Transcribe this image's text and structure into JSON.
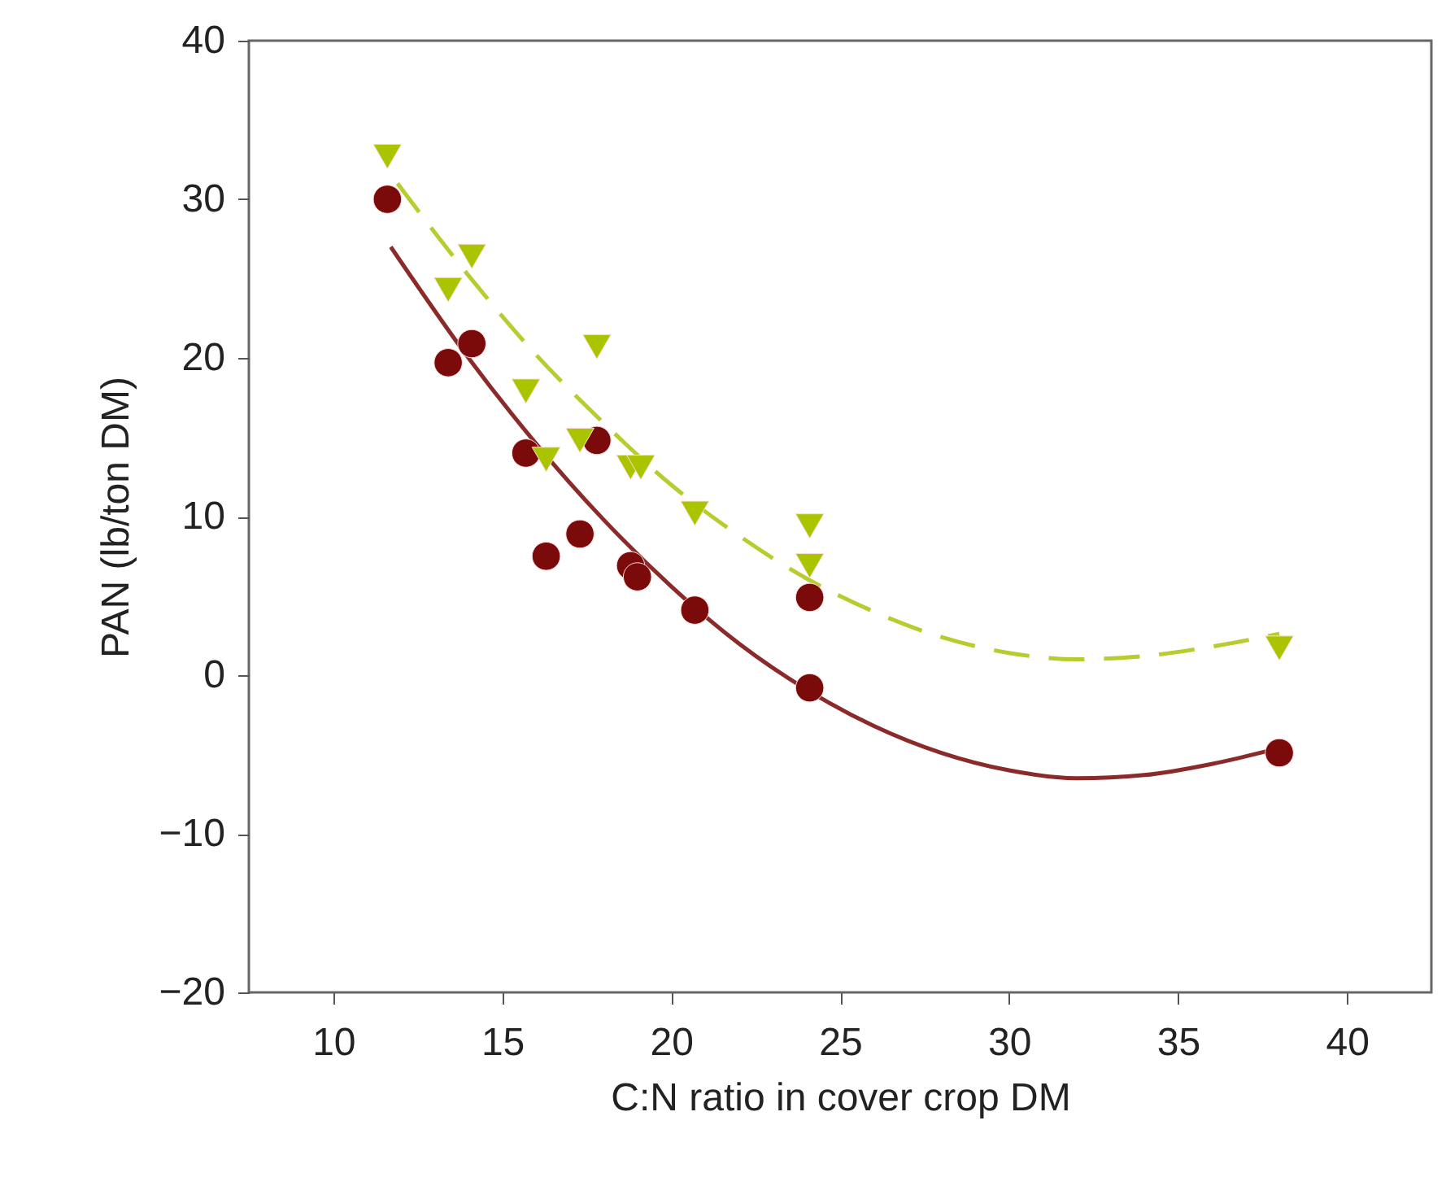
{
  "chart_data": {
    "type": "scatter",
    "xlabel": "C:N ratio in cover crop DM",
    "ylabel": "PAN (lb/ton DM)",
    "xlim": [
      7.5,
      42.5
    ],
    "xticks": [
      10,
      15,
      20,
      25,
      30,
      35,
      40
    ],
    "ylim": [
      -20,
      40
    ],
    "yticks": [
      -20,
      -10,
      0,
      10,
      20,
      30,
      40
    ],
    "grid": false,
    "series": [
      {
        "color": "#7b0a0a",
        "marker": "circle",
        "x": [
          11.6,
          13.4,
          14.1,
          15.7,
          16.3,
          17.3,
          17.8,
          18.8,
          19.0,
          20.7,
          24.1,
          24.1,
          38.0
        ],
        "values": [
          30.0,
          19.7,
          20.9,
          14.0,
          7.5,
          8.9,
          14.8,
          6.9,
          6.2,
          4.1,
          4.9,
          -0.8,
          -4.9
        ]
      },
      {
        "color": "#aac400",
        "marker": "triangle",
        "x": [
          11.6,
          13.4,
          14.1,
          15.7,
          16.3,
          17.3,
          17.8,
          18.8,
          19.1,
          20.7,
          24.1,
          24.1,
          38.0
        ],
        "values": [
          32.7,
          24.3,
          26.4,
          17.9,
          13.6,
          14.8,
          20.7,
          13.1,
          13.1,
          10.2,
          9.4,
          6.9,
          1.7
        ]
      },
      {
        "type": "line",
        "color": "#8b2a2a",
        "line_style": "solid",
        "marker": "none",
        "x": [
          11.7,
          14,
          16,
          18,
          20,
          22,
          24,
          26,
          28,
          30,
          32,
          34,
          36,
          38
        ],
        "values": [
          27.0,
          20.0,
          14.6,
          9.8,
          5.6,
          2.0,
          -0.9,
          -3.2,
          -4.9,
          -6.0,
          -6.5,
          -6.3,
          -5.6,
          -4.6
        ]
      },
      {
        "type": "line",
        "color": "#b8cc30",
        "line_style": "dashed",
        "marker": "none",
        "x": [
          11.9,
          14,
          16,
          18,
          20,
          22,
          24,
          26,
          28,
          30,
          32,
          34,
          36,
          38
        ],
        "values": [
          31.0,
          25.2,
          20.2,
          15.9,
          12.0,
          8.8,
          6.1,
          4.0,
          2.4,
          1.4,
          1.0,
          1.2,
          1.8,
          2.6
        ]
      }
    ]
  }
}
